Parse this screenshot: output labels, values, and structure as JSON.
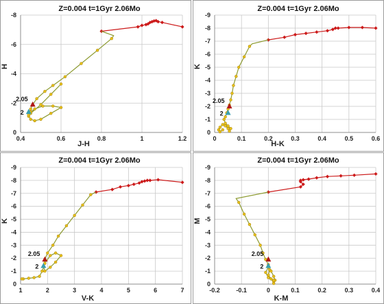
{
  "colors": {
    "red_track": "#cc1a1a",
    "olive_track": "#8c9a30",
    "yellow_markers": "#e8c21c",
    "marker_edge": "#b08a10",
    "mass_205": "#b01818",
    "mass_2": "#3a9fb0"
  },
  "chart_data": [
    {
      "type": "line",
      "title": "Z=0.004  t=1Gyr  2.06Mo",
      "xlabel": "J-H",
      "ylabel": "H",
      "xlim": [
        0.4,
        1.2
      ],
      "ylim": [
        0,
        -8
      ],
      "y_inverted": true,
      "grid": true,
      "x_ticks": [
        0.4,
        0.6,
        0.8,
        1,
        1.2
      ],
      "y_ticks": [
        0,
        -2,
        -4,
        -6,
        -8
      ],
      "x_tick_labels": [
        "0.4",
        "0.6",
        "0.8",
        "1",
        "1.2"
      ],
      "y_tick_labels": [
        "0",
        "-2",
        "-4",
        "-6",
        "-8"
      ],
      "series": [
        {
          "role": "red_branch",
          "x": [
            0.8,
            0.98,
            1.0,
            1.02,
            1.03,
            1.04,
            1.05,
            1.06,
            1.07,
            1.08,
            1.1,
            1.2
          ],
          "y": [
            -6.9,
            -7.2,
            -7.3,
            -7.35,
            -7.4,
            -7.5,
            -7.55,
            -7.6,
            -7.62,
            -7.55,
            -7.5,
            -7.2
          ]
        },
        {
          "role": "olive_transition",
          "x": [
            0.8,
            0.86,
            0.85
          ],
          "y": [
            -6.9,
            -6.6,
            -6.4
          ]
        },
        {
          "role": "yellow_sequence",
          "x": [
            0.85,
            0.78,
            0.7,
            0.62,
            0.56,
            0.52,
            0.48,
            0.46,
            0.45,
            0.44,
            0.45,
            0.47,
            0.5,
            0.55,
            0.6,
            0.56,
            0.51,
            0.47,
            0.45,
            0.44,
            0.45,
            0.5,
            0.55,
            0.6
          ],
          "y": [
            -6.4,
            -5.6,
            -4.7,
            -3.8,
            -3.2,
            -2.8,
            -2.3,
            -1.9,
            -1.6,
            -1.1,
            -0.9,
            -0.8,
            -0.9,
            -1.3,
            -1.7,
            -1.8,
            -1.8,
            -1.6,
            -1.4,
            -1.2,
            -1.3,
            -1.9,
            -2.6,
            -3.3
          ]
        }
      ],
      "annotations": [
        {
          "label": "2.05",
          "x": 0.46,
          "y": -1.9,
          "marker": "triangle",
          "color_key": "mass_205"
        },
        {
          "label": "2",
          "x": 0.44,
          "y": -1.4,
          "marker": "triangle",
          "color_key": "mass_2"
        }
      ]
    },
    {
      "type": "line",
      "title": "Z=0.004  t=1Gyr  2.06Mo",
      "xlabel": "H-K",
      "ylabel": "K",
      "xlim": [
        0,
        0.6
      ],
      "ylim": [
        0,
        -9
      ],
      "y_inverted": true,
      "grid": true,
      "x_ticks": [
        0,
        0.1,
        0.2,
        0.3,
        0.4,
        0.5,
        0.6
      ],
      "y_ticks": [
        0,
        -1,
        -2,
        -3,
        -4,
        -5,
        -6,
        -7,
        -8,
        -9
      ],
      "x_tick_labels": [
        "0",
        "0.1",
        "0.2",
        "0.3",
        "0.4",
        "0.5",
        "0.6"
      ],
      "y_tick_labels": [
        "0",
        "-1",
        "-2",
        "-3",
        "-4",
        "-5",
        "-6",
        "-7",
        "-8",
        "-9"
      ],
      "series": [
        {
          "role": "red_branch",
          "x": [
            0.2,
            0.26,
            0.3,
            0.34,
            0.38,
            0.42,
            0.44,
            0.45,
            0.46,
            0.5,
            0.55,
            0.6
          ],
          "y": [
            -7.1,
            -7.3,
            -7.5,
            -7.6,
            -7.7,
            -7.8,
            -7.9,
            -8.0,
            -8.0,
            -8.05,
            -8.05,
            -8.0
          ]
        },
        {
          "role": "olive_transition",
          "x": [
            0.2,
            0.14,
            0.13
          ],
          "y": [
            -7.1,
            -6.8,
            -6.6
          ]
        },
        {
          "role": "yellow_sequence",
          "x": [
            0.13,
            0.11,
            0.09,
            0.08,
            0.07,
            0.065,
            0.06,
            0.055,
            0.05,
            0.045,
            0.04,
            0.035,
            0.04,
            0.05,
            0.06,
            0.055,
            0.05,
            0.04,
            0.03,
            0.02,
            0.015,
            0.02,
            0.03
          ],
          "y": [
            -6.6,
            -5.8,
            -5.0,
            -4.3,
            -3.6,
            -3.0,
            -2.5,
            -2.1,
            -1.8,
            -1.5,
            -1.2,
            -1.0,
            -0.7,
            -0.5,
            -0.3,
            -0.1,
            -0.3,
            -0.5,
            -0.6,
            -0.4,
            -0.2,
            -0.05,
            -0.2
          ]
        }
      ],
      "annotations": [
        {
          "label": "2.05",
          "x": 0.055,
          "y": -2.0,
          "marker": "triangle",
          "color_key": "mass_205"
        },
        {
          "label": "2",
          "x": 0.05,
          "y": -1.5,
          "marker": "triangle",
          "color_key": "mass_2"
        }
      ]
    },
    {
      "type": "line",
      "title": "Z=0.004  t=1Gyr  2.06Mo",
      "xlabel": "V-K",
      "ylabel": "K",
      "xlim": [
        1,
        7
      ],
      "ylim": [
        0,
        -9
      ],
      "y_inverted": true,
      "grid": true,
      "x_ticks": [
        1,
        2,
        3,
        4,
        5,
        6,
        7
      ],
      "y_ticks": [
        0,
        -1,
        -2,
        -3,
        -4,
        -5,
        -6,
        -7,
        -8,
        -9
      ],
      "x_tick_labels": [
        "1",
        "2",
        "3",
        "4",
        "5",
        "6",
        "7"
      ],
      "y_tick_labels": [
        "0",
        "-1",
        "-2",
        "-3",
        "-4",
        "-5",
        "-6",
        "-7",
        "-8",
        "-9"
      ],
      "series": [
        {
          "role": "red_branch",
          "x": [
            3.8,
            4.4,
            4.7,
            5.0,
            5.2,
            5.4,
            5.5,
            5.6,
            5.7,
            5.8,
            6.1,
            7.0
          ],
          "y": [
            -7.1,
            -7.3,
            -7.5,
            -7.6,
            -7.7,
            -7.8,
            -7.9,
            -7.95,
            -8.0,
            -8.0,
            -8.05,
            -7.85
          ]
        },
        {
          "role": "olive_transition",
          "x": [
            3.8,
            3.7,
            3.6
          ],
          "y": [
            -7.1,
            -7.0,
            -6.9
          ]
        },
        {
          "role": "yellow_sequence",
          "x": [
            3.6,
            3.3,
            3.0,
            2.7,
            2.4,
            2.2,
            2.0,
            1.9,
            1.85,
            1.9,
            2.1,
            2.3,
            2.5,
            2.3,
            2.1,
            1.9,
            1.8,
            1.7,
            1.5,
            1.3,
            1.1,
            1.05
          ],
          "y": [
            -6.9,
            -6.1,
            -5.3,
            -4.5,
            -3.7,
            -3.0,
            -2.4,
            -1.9,
            -1.4,
            -1.0,
            -1.3,
            -1.7,
            -2.2,
            -2.4,
            -2.2,
            -1.6,
            -1.0,
            -0.6,
            -0.5,
            -0.45,
            -0.4,
            -0.4
          ]
        }
      ],
      "annotations": [
        {
          "label": "2.05",
          "x": 1.9,
          "y": -1.9,
          "marker": "triangle",
          "color_key": "mass_205"
        },
        {
          "label": "2",
          "x": 1.85,
          "y": -1.4,
          "marker": "triangle",
          "color_key": "mass_2"
        }
      ]
    },
    {
      "type": "line",
      "title": "Z=0.004  t=1Gyr  2.06Mo",
      "xlabel": "K-M",
      "ylabel": "M",
      "xlim": [
        -0.2,
        0.4
      ],
      "ylim": [
        0,
        -9
      ],
      "y_inverted": true,
      "grid": true,
      "x_ticks": [
        -0.2,
        -0.1,
        0,
        0.1,
        0.2,
        0.3,
        0.4
      ],
      "y_ticks": [
        0,
        -1,
        -2,
        -3,
        -4,
        -5,
        -6,
        -7,
        -8,
        -9
      ],
      "x_tick_labels": [
        "-0.2",
        "-0.1",
        "0",
        "0.1",
        "0.2",
        "0.3",
        "0.4"
      ],
      "y_tick_labels": [
        "0",
        "-1",
        "-2",
        "-3",
        "-4",
        "-5",
        "-6",
        "-7",
        "-8",
        "-9"
      ],
      "series": [
        {
          "role": "red_branch",
          "x": [
            0.0,
            0.12,
            0.13,
            0.12,
            0.12,
            0.13,
            0.15,
            0.18,
            0.22,
            0.27,
            0.32,
            0.4
          ],
          "y": [
            -7.1,
            -7.5,
            -7.7,
            -7.9,
            -8.0,
            -8.05,
            -8.1,
            -8.2,
            -8.3,
            -8.35,
            -8.4,
            -8.5
          ]
        },
        {
          "role": "olive_transition",
          "x": [
            0.0,
            -0.12,
            -0.11
          ],
          "y": [
            -7.1,
            -6.6,
            -6.3
          ]
        },
        {
          "role": "yellow_sequence",
          "x": [
            -0.11,
            -0.09,
            -0.07,
            -0.05,
            -0.03,
            -0.02,
            -0.01,
            0.0,
            0.005,
            0.0,
            0.01,
            0.02,
            0.0,
            -0.01,
            0.0,
            0.01,
            0.02,
            0.025,
            0.02,
            0.02
          ],
          "y": [
            -6.3,
            -5.4,
            -4.6,
            -3.8,
            -3.0,
            -2.4,
            -1.9,
            -1.5,
            -1.1,
            -0.7,
            -0.4,
            -0.2,
            -0.5,
            -0.9,
            -1.3,
            -1.0,
            -0.6,
            -0.3,
            -0.05,
            -0.3
          ]
        }
      ],
      "annotations": [
        {
          "label": "2.05",
          "x": 0.0,
          "y": -1.9,
          "marker": "triangle",
          "color_key": "mass_205"
        },
        {
          "label": "2",
          "x": 0.0,
          "y": -1.4,
          "marker": "triangle",
          "color_key": "mass_2"
        }
      ]
    }
  ]
}
